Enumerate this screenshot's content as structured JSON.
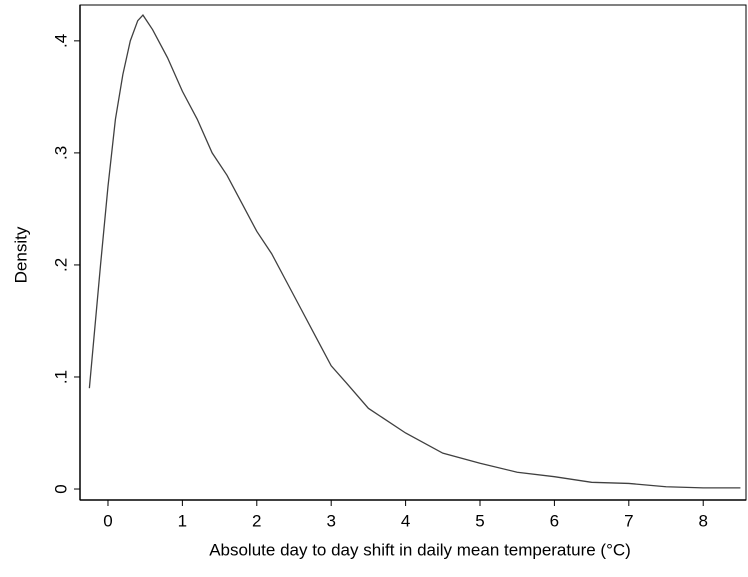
{
  "chart_data": {
    "type": "line",
    "x_label": "Absolute day to day shift in daily mean temperature (°C)",
    "y_label": "Density",
    "x": [
      -0.25,
      -0.1,
      0.0,
      0.1,
      0.2,
      0.3,
      0.4,
      0.47,
      0.6,
      0.8,
      1.0,
      1.2,
      1.4,
      1.6,
      1.8,
      2.0,
      2.2,
      2.4,
      2.6,
      2.8,
      3.0,
      3.2,
      3.5,
      4.0,
      4.5,
      5.0,
      5.5,
      6.0,
      6.5,
      7.0,
      7.5,
      8.0,
      8.5
    ],
    "series": [
      {
        "color": "#404040",
        "values": [
          0.09,
          0.2,
          0.27,
          0.33,
          0.37,
          0.4,
          0.418,
          0.423,
          0.41,
          0.385,
          0.355,
          0.33,
          0.3,
          0.28,
          0.255,
          0.23,
          0.21,
          0.185,
          0.16,
          0.135,
          0.11,
          0.095,
          0.072,
          0.05,
          0.032,
          0.023,
          0.015,
          0.011,
          0.006,
          0.005,
          0.002,
          0.001,
          0.001
        ]
      }
    ],
    "xlim": [
      -0.376,
      8.575
    ],
    "ylim": [
      -0.0098,
      0.432
    ],
    "xticks": [
      0,
      1,
      2,
      3,
      4,
      5,
      6,
      7,
      8
    ],
    "yticks": [
      0,
      {
        "value": 0.1,
        "label": ".1"
      },
      {
        "value": 0.2,
        "label": ".2"
      },
      {
        "value": 0.3,
        "label": ".3"
      },
      {
        "value": 0.4,
        "label": ".4"
      }
    ]
  }
}
